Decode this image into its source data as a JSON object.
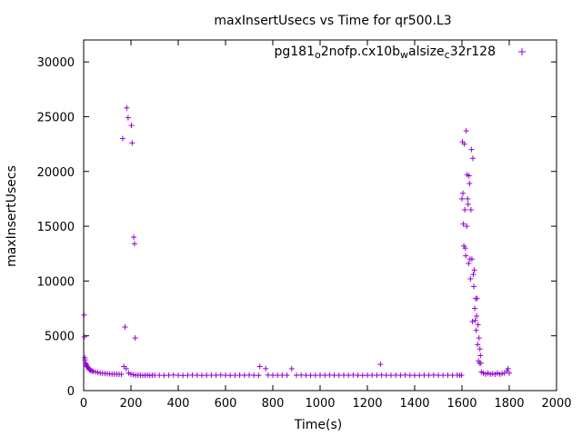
{
  "chart_data": {
    "type": "scatter",
    "title": "maxInsertUsecs vs Time for qr500.L3",
    "xlabel": "Time(s)",
    "ylabel": "maxInsertUsecs",
    "xlim": [
      0,
      2000
    ],
    "ylim": [
      0,
      32000
    ],
    "xticks": [
      0,
      200,
      400,
      600,
      800,
      1000,
      1200,
      1400,
      1600,
      1800,
      2000
    ],
    "yticks": [
      0,
      5000,
      10000,
      15000,
      20000,
      25000,
      30000
    ],
    "grid": false,
    "legend_position": "top-right",
    "marker": "+",
    "color": "#9400d3",
    "series": [
      {
        "name_parts": [
          {
            "text": "pg181",
            "shift": "none"
          },
          {
            "text": "o",
            "shift": "sub"
          },
          {
            "text": "2nofp.cx10b",
            "shift": "none"
          },
          {
            "text": "w",
            "shift": "sub"
          },
          {
            "text": "alsize",
            "shift": "none"
          },
          {
            "text": "c",
            "shift": "sub"
          },
          {
            "text": "32r128",
            "shift": "none"
          }
        ],
        "points": [
          [
            2,
            6900
          ],
          [
            3,
            4900
          ],
          [
            5,
            3000
          ],
          [
            6,
            2800
          ],
          [
            8,
            2500
          ],
          [
            10,
            2400
          ],
          [
            12,
            2300
          ],
          [
            15,
            2200
          ],
          [
            18,
            2100
          ],
          [
            20,
            2000
          ],
          [
            25,
            1900
          ],
          [
            30,
            1850
          ],
          [
            35,
            1800
          ],
          [
            40,
            1750
          ],
          [
            50,
            1700
          ],
          [
            60,
            1650
          ],
          [
            70,
            1600
          ],
          [
            80,
            1580
          ],
          [
            90,
            1560
          ],
          [
            100,
            1540
          ],
          [
            110,
            1520
          ],
          [
            120,
            1510
          ],
          [
            130,
            1500
          ],
          [
            140,
            1500
          ],
          [
            150,
            1490
          ],
          [
            160,
            1480
          ],
          [
            165,
            23000
          ],
          [
            175,
            5800
          ],
          [
            182,
            25800
          ],
          [
            188,
            24900
          ],
          [
            202,
            24200
          ],
          [
            205,
            22600
          ],
          [
            212,
            14000
          ],
          [
            215,
            13400
          ],
          [
            218,
            4800
          ],
          [
            170,
            2200
          ],
          [
            180,
            2000
          ],
          [
            190,
            1600
          ],
          [
            200,
            1500
          ],
          [
            210,
            1450
          ],
          [
            220,
            1400
          ],
          [
            230,
            1420
          ],
          [
            240,
            1400
          ],
          [
            250,
            1380
          ],
          [
            260,
            1400
          ],
          [
            270,
            1420
          ],
          [
            280,
            1380
          ],
          [
            290,
            1400
          ],
          [
            300,
            1410
          ],
          [
            320,
            1400
          ],
          [
            340,
            1390
          ],
          [
            360,
            1400
          ],
          [
            380,
            1420
          ],
          [
            400,
            1400
          ],
          [
            420,
            1380
          ],
          [
            440,
            1400
          ],
          [
            460,
            1420
          ],
          [
            480,
            1400
          ],
          [
            500,
            1390
          ],
          [
            520,
            1400
          ],
          [
            540,
            1410
          ],
          [
            560,
            1400
          ],
          [
            580,
            1420
          ],
          [
            600,
            1400
          ],
          [
            620,
            1390
          ],
          [
            640,
            1400
          ],
          [
            660,
            1410
          ],
          [
            680,
            1400
          ],
          [
            700,
            1420
          ],
          [
            720,
            1400
          ],
          [
            740,
            1390
          ],
          [
            745,
            2200
          ],
          [
            770,
            2000
          ],
          [
            780,
            1420
          ],
          [
            800,
            1400
          ],
          [
            820,
            1400
          ],
          [
            840,
            1410
          ],
          [
            860,
            1400
          ],
          [
            880,
            1990
          ],
          [
            900,
            1400
          ],
          [
            920,
            1420
          ],
          [
            940,
            1400
          ],
          [
            960,
            1390
          ],
          [
            980,
            1400
          ],
          [
            1000,
            1410
          ],
          [
            1020,
            1400
          ],
          [
            1040,
            1420
          ],
          [
            1060,
            1400
          ],
          [
            1080,
            1400
          ],
          [
            1100,
            1410
          ],
          [
            1120,
            1400
          ],
          [
            1140,
            1420
          ],
          [
            1160,
            1400
          ],
          [
            1180,
            1390
          ],
          [
            1200,
            1400
          ],
          [
            1220,
            1410
          ],
          [
            1240,
            1400
          ],
          [
            1255,
            2400
          ],
          [
            1260,
            1420
          ],
          [
            1280,
            1400
          ],
          [
            1300,
            1400
          ],
          [
            1320,
            1410
          ],
          [
            1340,
            1400
          ],
          [
            1360,
            1420
          ],
          [
            1380,
            1400
          ],
          [
            1400,
            1390
          ],
          [
            1420,
            1400
          ],
          [
            1440,
            1410
          ],
          [
            1460,
            1400
          ],
          [
            1480,
            1420
          ],
          [
            1500,
            1400
          ],
          [
            1520,
            1400
          ],
          [
            1540,
            1410
          ],
          [
            1560,
            1400
          ],
          [
            1580,
            1420
          ],
          [
            1590,
            1400
          ],
          [
            1598,
            1400
          ],
          [
            1600,
            17500
          ],
          [
            1602,
            22700
          ],
          [
            1604,
            18000
          ],
          [
            1606,
            15200
          ],
          [
            1608,
            13200
          ],
          [
            1610,
            22500
          ],
          [
            1612,
            16500
          ],
          [
            1614,
            13000
          ],
          [
            1616,
            12300
          ],
          [
            1618,
            23700
          ],
          [
            1620,
            15000
          ],
          [
            1622,
            19700
          ],
          [
            1624,
            17500
          ],
          [
            1626,
            17000
          ],
          [
            1628,
            11600
          ],
          [
            1630,
            19600
          ],
          [
            1632,
            18900
          ],
          [
            1634,
            12000
          ],
          [
            1636,
            10200
          ],
          [
            1638,
            16500
          ],
          [
            1640,
            22000
          ],
          [
            1642,
            12000
          ],
          [
            1644,
            6300
          ],
          [
            1646,
            21200
          ],
          [
            1648,
            10600
          ],
          [
            1650,
            9500
          ],
          [
            1652,
            11000
          ],
          [
            1654,
            7500
          ],
          [
            1656,
            6400
          ],
          [
            1658,
            8400
          ],
          [
            1660,
            5500
          ],
          [
            1662,
            6800
          ],
          [
            1664,
            8400
          ],
          [
            1666,
            4200
          ],
          [
            1668,
            6000
          ],
          [
            1670,
            2700
          ],
          [
            1672,
            4800
          ],
          [
            1674,
            2500
          ],
          [
            1676,
            3800
          ],
          [
            1678,
            3200
          ],
          [
            1680,
            2500
          ],
          [
            1682,
            1700
          ],
          [
            1690,
            1600
          ],
          [
            1700,
            1500
          ],
          [
            1710,
            1600
          ],
          [
            1720,
            1500
          ],
          [
            1730,
            1550
          ],
          [
            1740,
            1500
          ],
          [
            1750,
            1600
          ],
          [
            1760,
            1500
          ],
          [
            1770,
            1550
          ],
          [
            1780,
            1600
          ],
          [
            1790,
            1800
          ],
          [
            1795,
            2000
          ],
          [
            1800,
            1600
          ]
        ]
      }
    ]
  }
}
